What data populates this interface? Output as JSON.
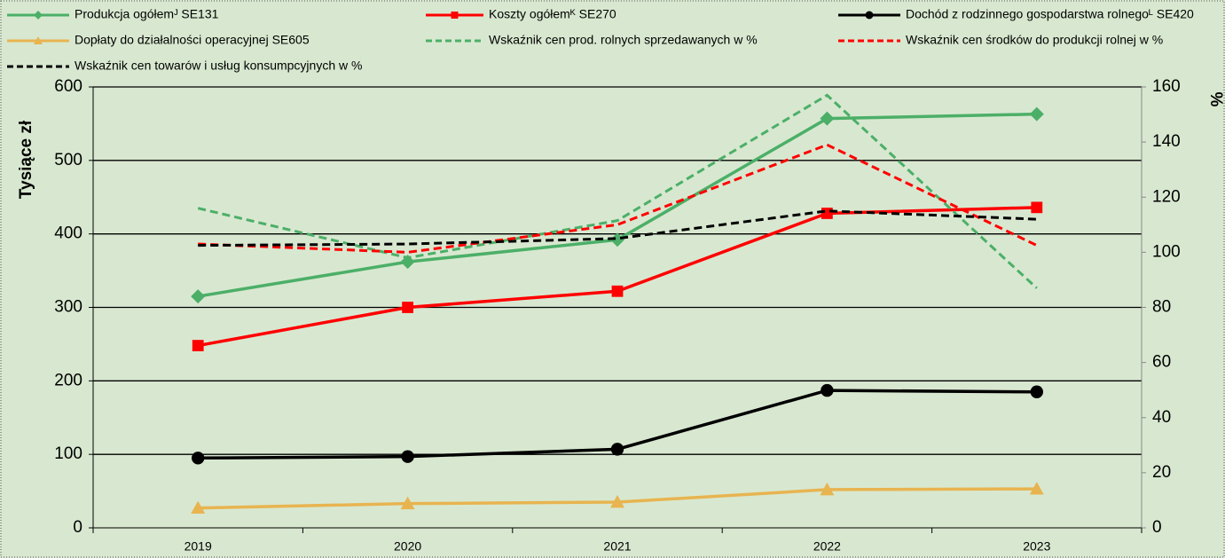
{
  "chart_data": {
    "type": "line",
    "categories": [
      "2019",
      "2020",
      "2021",
      "2022",
      "2023"
    ],
    "ylabel": "Tysiące zł",
    "y2label": "%",
    "ylim": [
      0,
      600
    ],
    "yticks": [
      0,
      100,
      200,
      300,
      400,
      500,
      600
    ],
    "y2lim": [
      0,
      160
    ],
    "y2ticks": [
      0,
      20,
      40,
      60,
      80,
      100,
      120,
      140,
      160
    ],
    "grid": true,
    "series": [
      {
        "name": "Produkcja ogółemᴶ SE131",
        "color": "#4caf68",
        "marker": "diamond",
        "values": [
          315,
          362,
          392,
          557,
          563
        ]
      },
      {
        "name": "Koszty ogółemᴷ SE270",
        "color": "#ff0000",
        "marker": "square",
        "values": [
          248,
          300,
          322,
          428,
          436
        ]
      },
      {
        "name": "Dochód z rodzinnego gospodarstwa rolnegoᴸ SE420",
        "color": "#000000",
        "marker": "circle",
        "values": [
          95,
          97,
          107,
          187,
          185
        ]
      },
      {
        "name": "Dopłaty do działalności operacyjnej SE605",
        "color": "#e8b450",
        "marker": "triangle",
        "values": [
          27,
          33,
          35,
          52,
          53
        ]
      },
      {
        "name": "Wskaźnik cen prod. rolnych sprzedawanych w %",
        "color": "#4caf68",
        "dash": true,
        "axis": "y2",
        "values": [
          116,
          98,
          111.5,
          157,
          87
        ]
      },
      {
        "name": "Wskaźnik cen środków do produkcji rolnej w %",
        "color": "#ff0000",
        "dash": true,
        "axis": "y2",
        "values": [
          103,
          100,
          110,
          139,
          102.5
        ]
      },
      {
        "name": "Wskaźnik cen towarów i usług konsumpcyjnych w %",
        "color": "#000000",
        "dash": true,
        "axis": "y2",
        "values": [
          102.5,
          103,
          105,
          115,
          112
        ]
      }
    ]
  }
}
